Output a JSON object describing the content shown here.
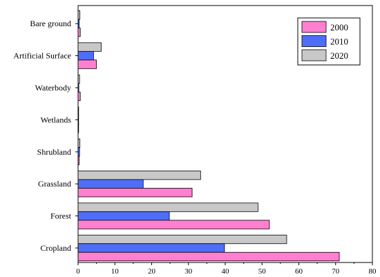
{
  "chart_data": {
    "type": "bar",
    "orientation": "horizontal",
    "categories": [
      "Bare ground",
      "Artificial Surface",
      "Waterbody",
      "Wetlands",
      "Shrubland",
      "Grassland",
      "Forest",
      "Cropland"
    ],
    "series": [
      {
        "name": "2000",
        "color": "#ff7fd0",
        "values": [
          0.6,
          5.0,
          0.6,
          0.1,
          0.3,
          31.0,
          52.0,
          71.0
        ]
      },
      {
        "name": "2010",
        "color": "#4f6ef7",
        "values": [
          0.3,
          4.2,
          0.2,
          0.1,
          0.4,
          17.7,
          24.8,
          39.8
        ]
      },
      {
        "name": "2020",
        "color": "#c8c8c8",
        "values": [
          0.5,
          6.3,
          0.4,
          0.1,
          0.5,
          33.3,
          48.9,
          56.7
        ]
      }
    ],
    "xlim": [
      0,
      80
    ],
    "xticks": [
      "0",
      "10",
      "20",
      "30",
      "40",
      "50",
      "60",
      "70",
      "80"
    ],
    "grid": false,
    "legend_position": "top-right"
  }
}
